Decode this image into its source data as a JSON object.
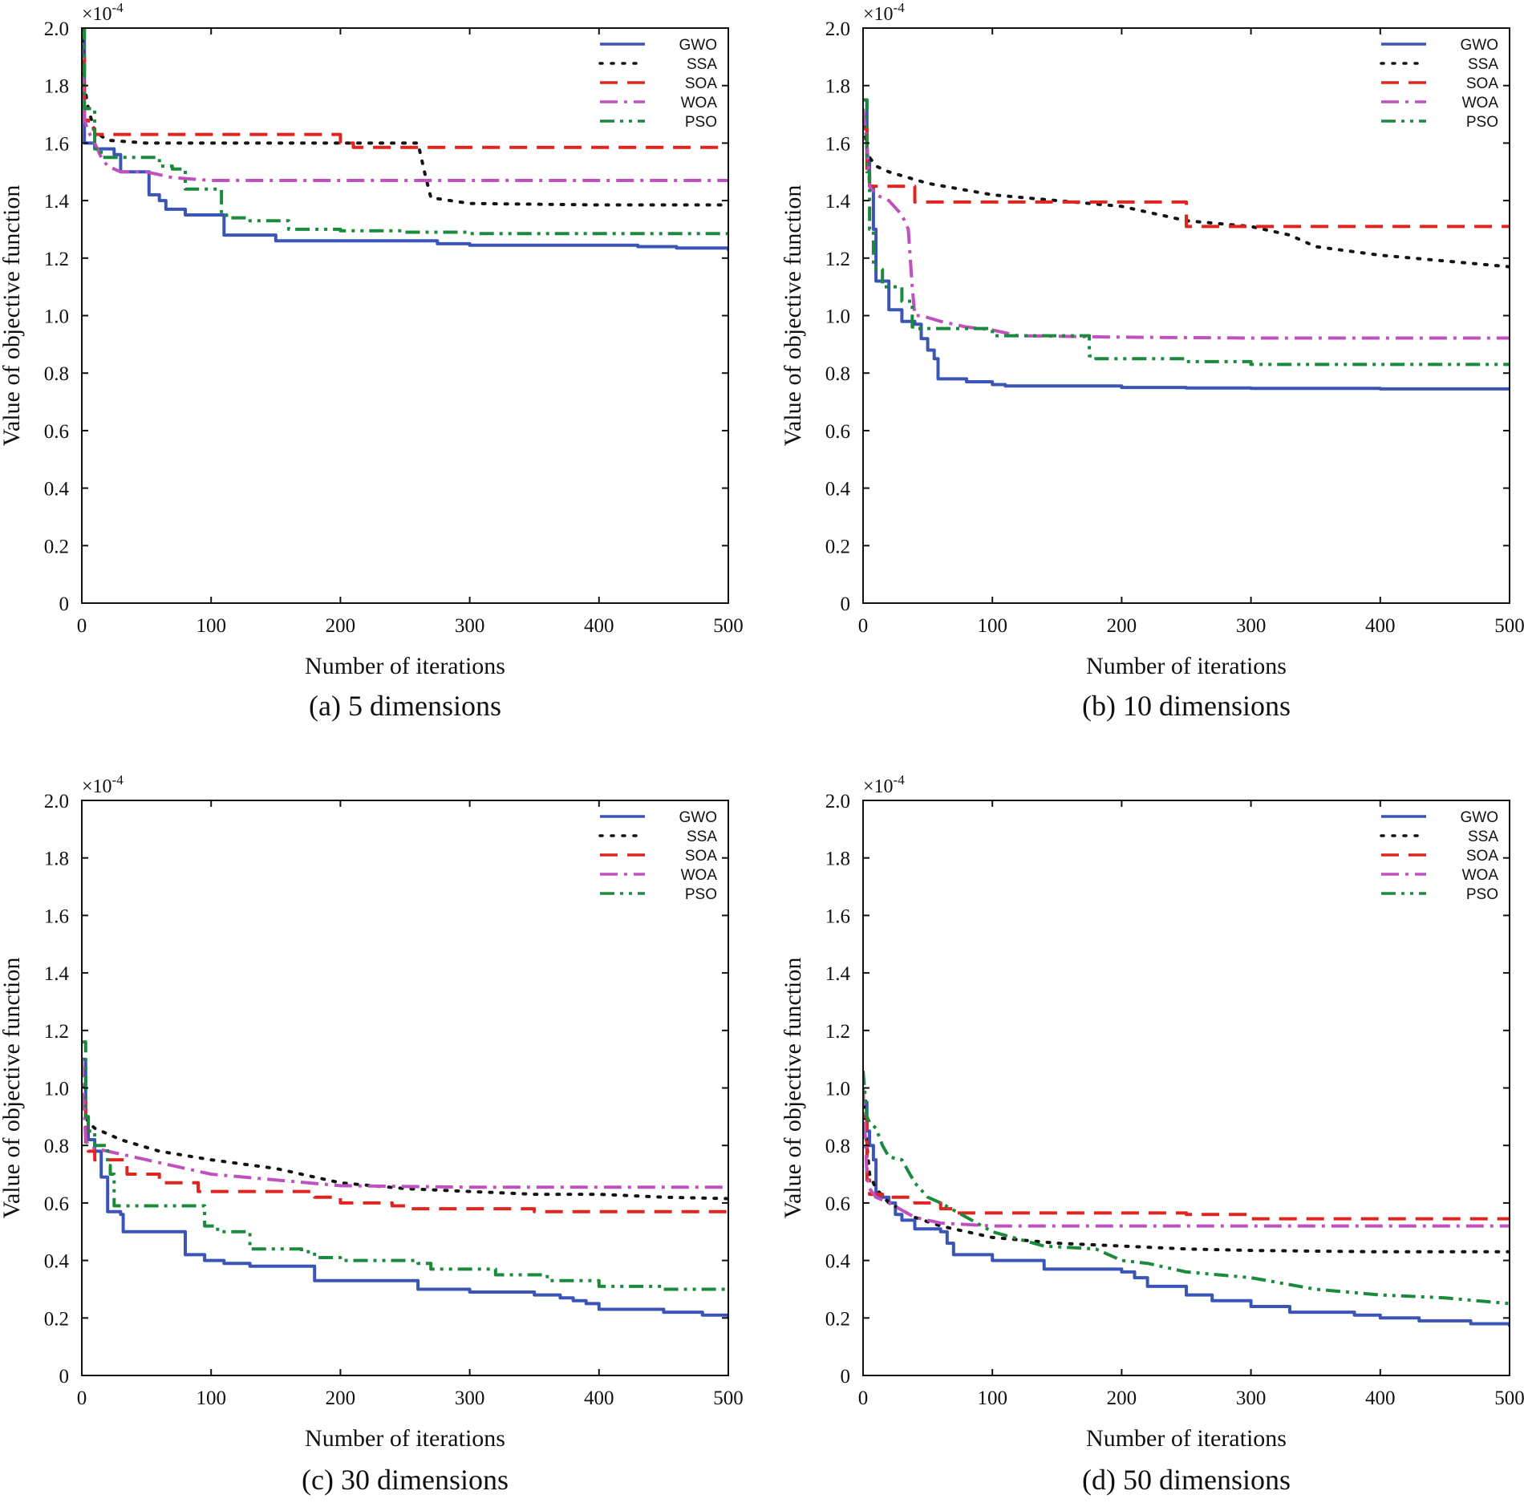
{
  "figure": {
    "font_family": "Liberation Serif",
    "background": "#ffffff",
    "axis_color": "#111111"
  },
  "legend_styles": [
    {
      "name": "GWO",
      "color": "#3a55b5",
      "dash": "solid"
    },
    {
      "name": "SSA",
      "color": "#141414",
      "dash": "dotted"
    },
    {
      "name": "SOA",
      "color": "#e0241f",
      "dash": "dashed"
    },
    {
      "name": "WOA",
      "color": "#c050c0",
      "dash": "dashdot"
    },
    {
      "name": "PSO",
      "color": "#1a8a3c",
      "dash": "dashdotdot"
    }
  ],
  "chart_data": [
    {
      "type": "line",
      "caption": "(a)  5 dimensions",
      "xlabel": "Number of iterations",
      "ylabel": "Value of objective function",
      "exponent_label": "×10-4",
      "xlim": [
        0,
        500
      ],
      "ylim": [
        0,
        2.0
      ],
      "xticks": [
        0,
        100,
        200,
        300,
        400,
        500
      ],
      "yticks": [
        0,
        0.2,
        0.4,
        0.6,
        0.8,
        1.0,
        1.2,
        1.4,
        1.6,
        1.8,
        2.0
      ],
      "ytick_labels": [
        "0",
        "0.2",
        "0.4",
        "0.6",
        "0.8",
        "1.0",
        "1.2",
        "1.4",
        "1.6",
        "1.8",
        "2.0"
      ],
      "legend": "top-right",
      "series": [
        {
          "name": "GWO",
          "step": true,
          "x": [
            0,
            2,
            10,
            25,
            30,
            52,
            60,
            65,
            80,
            108,
            110,
            148,
            150,
            275,
            300,
            400,
            430,
            460,
            500
          ],
          "y": [
            2.0,
            1.6,
            1.58,
            1.56,
            1.5,
            1.42,
            1.4,
            1.37,
            1.35,
            1.35,
            1.28,
            1.28,
            1.26,
            1.25,
            1.245,
            1.245,
            1.24,
            1.235,
            1.225
          ]
        },
        {
          "name": "SSA",
          "step": false,
          "x": [
            0,
            2,
            5,
            10,
            20,
            50,
            100,
            200,
            260,
            265,
            270,
            300,
            400,
            500
          ],
          "y": [
            2.0,
            1.8,
            1.72,
            1.64,
            1.61,
            1.6,
            1.6,
            1.6,
            1.6,
            1.5,
            1.41,
            1.39,
            1.385,
            1.385
          ]
        },
        {
          "name": "SOA",
          "step": true,
          "x": [
            0,
            2,
            5,
            10,
            200,
            210,
            500
          ],
          "y": [
            1.9,
            1.68,
            1.65,
            1.63,
            1.6,
            1.585,
            1.585
          ]
        },
        {
          "name": "WOA",
          "step": false,
          "x": [
            0,
            2,
            5,
            10,
            15,
            20,
            30,
            50,
            70,
            100,
            200,
            300,
            400,
            500
          ],
          "y": [
            1.95,
            1.68,
            1.64,
            1.6,
            1.55,
            1.52,
            1.5,
            1.5,
            1.48,
            1.47,
            1.47,
            1.47,
            1.47,
            1.47
          ]
        },
        {
          "name": "PSO",
          "step": true,
          "x": [
            0,
            2,
            10,
            15,
            55,
            60,
            70,
            80,
            105,
            108,
            112,
            130,
            160,
            200,
            250,
            300,
            500
          ],
          "y": [
            2.0,
            1.72,
            1.58,
            1.55,
            1.55,
            1.52,
            1.51,
            1.44,
            1.44,
            1.35,
            1.34,
            1.33,
            1.3,
            1.295,
            1.29,
            1.285,
            1.285
          ]
        }
      ]
    },
    {
      "type": "line",
      "caption": "(b)  10 dimensions",
      "xlabel": "Number of iterations",
      "ylabel": "Value of objective function",
      "exponent_label": "×10-4",
      "xlim": [
        0,
        500
      ],
      "ylim": [
        0,
        2.0
      ],
      "xticks": [
        0,
        100,
        200,
        300,
        400,
        500
      ],
      "yticks": [
        0,
        0.2,
        0.4,
        0.6,
        0.8,
        1.0,
        1.2,
        1.4,
        1.6,
        1.8,
        2.0
      ],
      "ytick_labels": [
        "0",
        "0.2",
        "0.4",
        "0.6",
        "0.8",
        "1.0",
        "1.2",
        "1.4",
        "1.6",
        "1.8",
        "2.0"
      ],
      "legend": "top-right",
      "series": [
        {
          "name": "GWO",
          "step": true,
          "x": [
            0,
            3,
            5,
            8,
            10,
            15,
            20,
            30,
            40,
            45,
            50,
            55,
            58,
            80,
            100,
            110,
            200,
            250,
            300,
            400,
            500
          ],
          "y": [
            1.75,
            1.55,
            1.45,
            1.3,
            1.12,
            1.12,
            1.02,
            0.98,
            0.97,
            0.92,
            0.88,
            0.85,
            0.78,
            0.77,
            0.76,
            0.755,
            0.75,
            0.748,
            0.747,
            0.745,
            0.742
          ]
        },
        {
          "name": "SSA",
          "step": false,
          "x": [
            0,
            3,
            5,
            10,
            20,
            50,
            100,
            150,
            200,
            250,
            300,
            330,
            350,
            400,
            450,
            500
          ],
          "y": [
            1.7,
            1.58,
            1.55,
            1.52,
            1.5,
            1.46,
            1.42,
            1.4,
            1.38,
            1.33,
            1.31,
            1.28,
            1.24,
            1.21,
            1.19,
            1.17
          ]
        },
        {
          "name": "SOA",
          "step": true,
          "x": [
            0,
            3,
            5,
            35,
            40,
            235,
            250,
            500
          ],
          "y": [
            1.65,
            1.5,
            1.45,
            1.45,
            1.395,
            1.395,
            1.31,
            1.31
          ]
        },
        {
          "name": "WOA",
          "step": false,
          "x": [
            0,
            3,
            5,
            10,
            20,
            30,
            35,
            38,
            40,
            45,
            60,
            80,
            100,
            120,
            200,
            300,
            500
          ],
          "y": [
            1.72,
            1.6,
            1.45,
            1.42,
            1.4,
            1.35,
            1.3,
            1.1,
            1.0,
            1.0,
            0.98,
            0.96,
            0.95,
            0.93,
            0.925,
            0.922,
            0.922
          ]
        },
        {
          "name": "PSO",
          "step": true,
          "x": [
            0,
            3,
            5,
            8,
            10,
            15,
            30,
            38,
            40,
            100,
            170,
            175,
            180,
            250,
            300,
            500
          ],
          "y": [
            1.75,
            1.5,
            1.3,
            1.18,
            1.16,
            1.1,
            1.05,
            0.96,
            0.955,
            0.93,
            0.93,
            0.86,
            0.85,
            0.84,
            0.83,
            0.825
          ]
        }
      ]
    },
    {
      "type": "line",
      "caption": "(c)  30 dimensions",
      "xlabel": "Number of iterations",
      "ylabel": "Value of objective function",
      "exponent_label": "×10-4",
      "xlim": [
        0,
        500
      ],
      "ylim": [
        0,
        2.0
      ],
      "xticks": [
        0,
        100,
        200,
        300,
        400,
        500
      ],
      "yticks": [
        0,
        0.2,
        0.4,
        0.6,
        0.8,
        1.0,
        1.2,
        1.4,
        1.6,
        1.8,
        2.0
      ],
      "ytick_labels": [
        "0",
        "0.2",
        "0.4",
        "0.6",
        "0.8",
        "1.0",
        "1.2",
        "1.4",
        "1.6",
        "1.8",
        "2.0"
      ],
      "legend": "top-right",
      "series": [
        {
          "name": "GWO",
          "step": true,
          "x": [
            0,
            3,
            5,
            10,
            15,
            20,
            30,
            32,
            78,
            80,
            95,
            110,
            130,
            180,
            230,
            260,
            300,
            350,
            370,
            380,
            390,
            400,
            450,
            480,
            500
          ],
          "y": [
            1.1,
            0.9,
            0.82,
            0.78,
            0.69,
            0.57,
            0.56,
            0.5,
            0.5,
            0.42,
            0.4,
            0.39,
            0.38,
            0.33,
            0.33,
            0.3,
            0.29,
            0.28,
            0.27,
            0.26,
            0.25,
            0.23,
            0.22,
            0.21,
            0.2
          ]
        },
        {
          "name": "SSA",
          "step": false,
          "x": [
            0,
            3,
            5,
            10,
            30,
            60,
            100,
            150,
            200,
            250,
            300,
            350,
            400,
            450,
            500
          ],
          "y": [
            1.05,
            0.9,
            0.88,
            0.86,
            0.82,
            0.78,
            0.75,
            0.72,
            0.67,
            0.65,
            0.64,
            0.63,
            0.63,
            0.62,
            0.615
          ]
        },
        {
          "name": "SOA",
          "step": true,
          "x": [
            0,
            3,
            5,
            10,
            35,
            60,
            90,
            130,
            180,
            200,
            240,
            250,
            350,
            500
          ],
          "y": [
            0.95,
            0.8,
            0.78,
            0.75,
            0.7,
            0.67,
            0.64,
            0.64,
            0.62,
            0.6,
            0.59,
            0.58,
            0.57,
            0.56
          ]
        },
        {
          "name": "WOA",
          "step": false,
          "x": [
            0,
            3,
            5,
            10,
            20,
            40,
            60,
            80,
            100,
            150,
            200,
            300,
            400,
            500
          ],
          "y": [
            1.1,
            0.82,
            0.8,
            0.79,
            0.78,
            0.76,
            0.74,
            0.72,
            0.7,
            0.68,
            0.66,
            0.655,
            0.655,
            0.655
          ]
        },
        {
          "name": "PSO",
          "step": true,
          "x": [
            0,
            3,
            5,
            10,
            20,
            22,
            25,
            90,
            95,
            105,
            130,
            170,
            180,
            200,
            260,
            270,
            320,
            360,
            400,
            450,
            500
          ],
          "y": [
            1.16,
            0.9,
            0.85,
            0.8,
            0.73,
            0.7,
            0.59,
            0.59,
            0.52,
            0.5,
            0.44,
            0.43,
            0.41,
            0.4,
            0.39,
            0.37,
            0.35,
            0.33,
            0.31,
            0.3,
            0.3
          ]
        }
      ]
    },
    {
      "type": "line",
      "caption": "(d)  50 dimensions",
      "xlabel": "Number of iterations",
      "ylabel": "Value of objective function",
      "exponent_label": "×10-4",
      "xlim": [
        0,
        500
      ],
      "ylim": [
        0,
        2.0
      ],
      "xticks": [
        0,
        100,
        200,
        300,
        400,
        500
      ],
      "yticks": [
        0,
        0.2,
        0.4,
        0.6,
        0.8,
        1.0,
        1.2,
        1.4,
        1.6,
        1.8,
        2.0
      ],
      "ytick_labels": [
        "0",
        "0.2",
        "0.4",
        "0.6",
        "0.8",
        "1.0",
        "1.2",
        "1.4",
        "1.6",
        "1.8",
        "2.0"
      ],
      "legend": "top-right",
      "series": [
        {
          "name": "GWO",
          "step": true,
          "x": [
            0,
            3,
            5,
            8,
            10,
            15,
            20,
            25,
            30,
            40,
            60,
            65,
            70,
            100,
            140,
            200,
            210,
            220,
            250,
            270,
            300,
            330,
            380,
            400,
            430,
            470,
            500
          ],
          "y": [
            0.95,
            0.85,
            0.8,
            0.75,
            0.62,
            0.62,
            0.6,
            0.56,
            0.54,
            0.51,
            0.5,
            0.46,
            0.42,
            0.4,
            0.37,
            0.36,
            0.34,
            0.31,
            0.28,
            0.26,
            0.24,
            0.22,
            0.21,
            0.2,
            0.19,
            0.18,
            0.17
          ]
        },
        {
          "name": "SSA",
          "step": false,
          "x": [
            0,
            3,
            5,
            10,
            20,
            40,
            60,
            80,
            100,
            150,
            200,
            250,
            300,
            400,
            500
          ],
          "y": [
            0.98,
            0.8,
            0.7,
            0.65,
            0.6,
            0.55,
            0.52,
            0.5,
            0.48,
            0.46,
            0.45,
            0.44,
            0.435,
            0.43,
            0.43
          ]
        },
        {
          "name": "SOA",
          "step": true,
          "x": [
            0,
            3,
            5,
            15,
            40,
            60,
            70,
            250,
            300,
            500
          ],
          "y": [
            0.9,
            0.68,
            0.63,
            0.62,
            0.6,
            0.58,
            0.565,
            0.56,
            0.545,
            0.545
          ]
        },
        {
          "name": "WOA",
          "step": false,
          "x": [
            0,
            3,
            5,
            10,
            20,
            40,
            60,
            80,
            100,
            200,
            300,
            400,
            500
          ],
          "y": [
            1.0,
            0.7,
            0.65,
            0.62,
            0.6,
            0.55,
            0.53,
            0.525,
            0.52,
            0.52,
            0.52,
            0.52,
            0.52
          ]
        },
        {
          "name": "PSO",
          "step": false,
          "x": [
            0,
            3,
            5,
            10,
            15,
            20,
            30,
            40,
            50,
            60,
            80,
            100,
            140,
            180,
            200,
            220,
            250,
            300,
            350,
            400,
            450,
            500
          ],
          "y": [
            1.06,
            0.9,
            0.88,
            0.86,
            0.8,
            0.76,
            0.75,
            0.67,
            0.62,
            0.6,
            0.55,
            0.5,
            0.45,
            0.44,
            0.4,
            0.39,
            0.36,
            0.34,
            0.3,
            0.28,
            0.27,
            0.25
          ]
        }
      ]
    }
  ]
}
